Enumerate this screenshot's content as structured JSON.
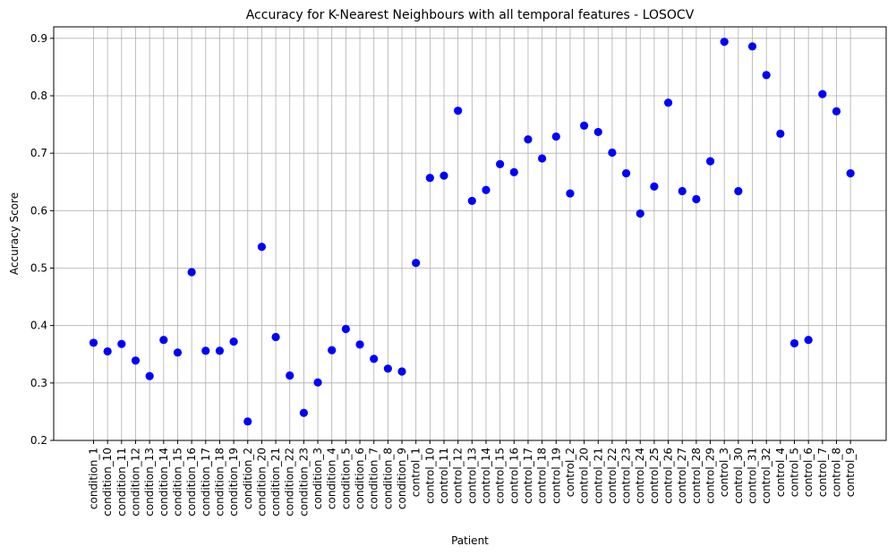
{
  "chart_data": {
    "type": "scatter",
    "title": "Accuracy for K-Nearest Neighbours with all temporal features - LOSOCV",
    "xlabel": "Patient",
    "ylabel": "Accuracy Score",
    "ylim": [
      0.2,
      0.92
    ],
    "yticks": [
      "0.2",
      "0.3",
      "0.4",
      "0.5",
      "0.6",
      "0.7",
      "0.8",
      "0.9"
    ],
    "grid": true,
    "marker_color": "#0000ff",
    "categories": [
      "condition_1",
      "condition_10",
      "condition_11",
      "condition_12",
      "condition_13",
      "condition_14",
      "condition_15",
      "condition_16",
      "condition_17",
      "condition_18",
      "condition_19",
      "condition_2",
      "condition_20",
      "condition_21",
      "condition_22",
      "condition_23",
      "condition_3",
      "condition_4",
      "condition_5",
      "condition_6",
      "condition_7",
      "condition_8",
      "condition_9",
      "control_1",
      "control_10",
      "control_11",
      "control_12",
      "control_13",
      "control_14",
      "control_15",
      "control_16",
      "control_17",
      "control_18",
      "control_19",
      "control_2",
      "control_20",
      "control_21",
      "control_22",
      "control_23",
      "control_24",
      "control_25",
      "control_26",
      "control_27",
      "control_28",
      "control_29",
      "control_3",
      "control_30",
      "control_31",
      "control_32",
      "control_4",
      "control_5",
      "control_6",
      "control_7",
      "control_8",
      "control_9"
    ],
    "values": [
      0.37,
      0.355,
      0.368,
      0.339,
      0.312,
      0.375,
      0.353,
      0.493,
      0.356,
      0.356,
      0.372,
      0.233,
      0.537,
      0.38,
      0.313,
      0.248,
      0.301,
      0.357,
      0.394,
      0.367,
      0.342,
      0.325,
      0.32,
      0.509,
      0.657,
      0.661,
      0.774,
      0.617,
      0.636,
      0.681,
      0.667,
      0.724,
      0.691,
      0.729,
      0.63,
      0.748,
      0.737,
      0.701,
      0.665,
      0.595,
      0.642,
      0.788,
      0.634,
      0.62,
      0.686,
      0.894,
      0.634,
      0.886,
      0.836,
      0.734,
      0.369,
      0.375,
      0.803,
      0.773,
      0.665
    ]
  }
}
